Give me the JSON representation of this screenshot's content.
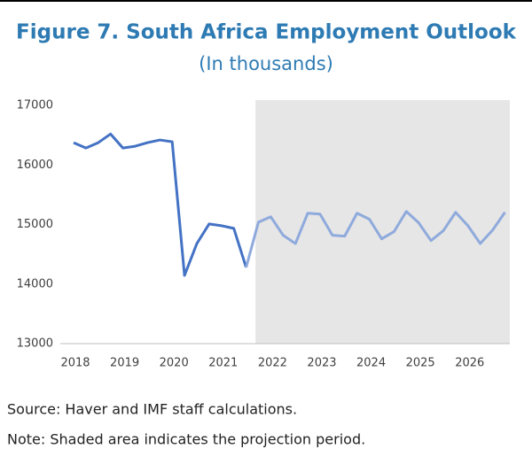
{
  "chart_data": {
    "type": "line",
    "title": "Figure 7. South Africa Employment Outlook",
    "subtitle": "(In thousands)",
    "x": [
      2018,
      2018.25,
      2018.5,
      2018.75,
      2019,
      2019.25,
      2019.5,
      2019.75,
      2020,
      2020.25,
      2020.5,
      2020.75,
      2021,
      2021.25,
      2021.5,
      2021.75,
      2022,
      2022.25,
      2022.5,
      2022.75,
      2023,
      2023.25,
      2023.5,
      2023.75,
      2024,
      2024.25,
      2024.5,
      2024.75,
      2025,
      2025.25,
      2025.5,
      2025.75,
      2026,
      2026.25,
      2026.5,
      2026.75
    ],
    "series": [
      {
        "color": "#4472c4",
        "values": [
          16375,
          16285,
          16375,
          16520,
          16285,
          16315,
          16375,
          16420,
          16390,
          14145,
          14680,
          15010,
          14980,
          14935,
          14280,
          null,
          null,
          null,
          null,
          null,
          null,
          null,
          null,
          null,
          null,
          null,
          null,
          null,
          null,
          null,
          null,
          null,
          null,
          null,
          null,
          null
        ]
      },
      {
        "color": "#8faadc",
        "values": [
          null,
          null,
          null,
          null,
          null,
          null,
          null,
          null,
          null,
          null,
          null,
          null,
          null,
          null,
          14280,
          15040,
          15130,
          14820,
          14680,
          15190,
          15175,
          14820,
          14805,
          15190,
          15090,
          14760,
          14880,
          15220,
          15030,
          14730,
          14895,
          15205,
          14980,
          14680,
          14905,
          15205
        ]
      }
    ],
    "xlim": [
      2017.73,
      2026.85
    ],
    "xticks": [
      2018,
      2019,
      2020,
      2021,
      2022,
      2023,
      2024,
      2025,
      2026
    ],
    "ylim": [
      13000,
      17090
    ],
    "yticks": [
      13000,
      14000,
      15000,
      16000,
      17000
    ],
    "shade": {
      "x": [
        2021.69,
        2026.85
      ],
      "color": "#e6e6e6"
    },
    "source": "Source: Haver and IMF staff calculations.",
    "note": "Note: Shaded area indicates the projection period."
  }
}
